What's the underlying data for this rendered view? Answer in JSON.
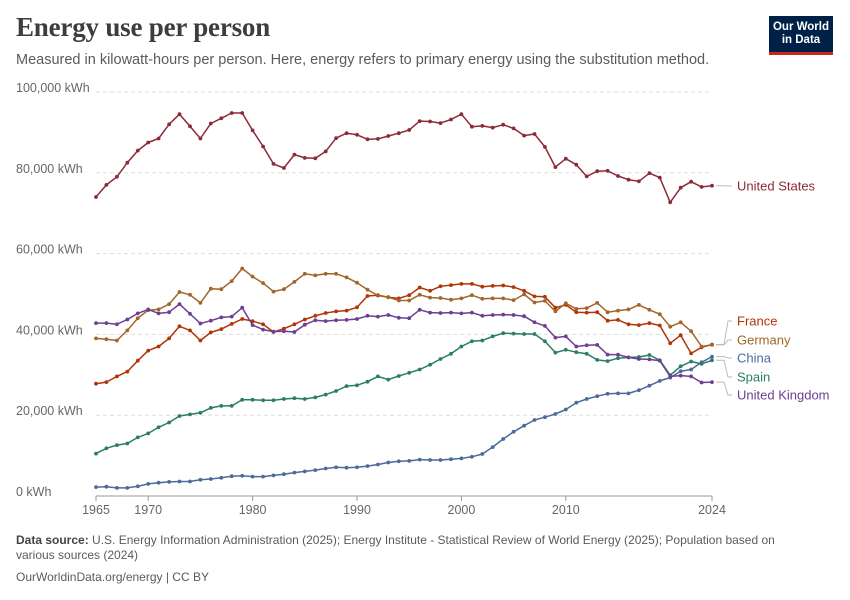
{
  "header": {
    "title": "Energy use per person",
    "subtitle": "Measured in kilowatt-hours per person. Here, energy refers to primary energy using the substitution method.",
    "logo_line1": "Our World",
    "logo_line2": "in Data"
  },
  "footer": {
    "source_label": "Data source:",
    "source_text": "U.S. Energy Information Administration (2025); Energy Institute - Statistical Review of World Energy (2025); Population based on various sources (2024)",
    "credit": "OurWorldinData.org/energy | CC BY"
  },
  "colors": {
    "United States": "#8c2a3a",
    "France": "#b13507",
    "Germany": "#a2652a",
    "China": "#4c6a9c",
    "Spain": "#2a7e64",
    "United Kingdom": "#6d3e91"
  },
  "chart_data": {
    "type": "line",
    "title": "Energy use per person",
    "ylabel": "",
    "ylim": [
      0,
      100000
    ],
    "xlim": [
      1965,
      2024
    ],
    "grid": true,
    "legend": "right-edge labels",
    "x_ticks": [
      1965,
      1970,
      1980,
      1990,
      2000,
      2010,
      2024
    ],
    "y_ticks": [
      "0 kWh",
      "20,000 kWh",
      "40,000 kWh",
      "60,000 kWh",
      "80,000 kWh",
      "100,000 kWh"
    ],
    "y_tick_values": [
      0,
      20000,
      40000,
      60000,
      80000,
      100000
    ],
    "x": [
      1965,
      1966,
      1967,
      1968,
      1969,
      1970,
      1971,
      1972,
      1973,
      1974,
      1975,
      1976,
      1977,
      1978,
      1979,
      1980,
      1981,
      1982,
      1983,
      1984,
      1985,
      1986,
      1987,
      1988,
      1989,
      1990,
      1991,
      1992,
      1993,
      1994,
      1995,
      1996,
      1997,
      1998,
      1999,
      2000,
      2001,
      2002,
      2003,
      2004,
      2005,
      2006,
      2007,
      2008,
      2009,
      2010,
      2011,
      2012,
      2013,
      2014,
      2015,
      2016,
      2017,
      2018,
      2019,
      2020,
      2021,
      2022,
      2023,
      2024
    ],
    "series": [
      {
        "name": "United States",
        "values": [
          74000,
          77000,
          79000,
          82500,
          85500,
          87500,
          88500,
          92000,
          94500,
          91500,
          88500,
          92200,
          93500,
          94800,
          94800,
          90500,
          86500,
          82200,
          81200,
          84500,
          83700,
          83600,
          85300,
          88600,
          89800,
          89400,
          88300,
          88400,
          89100,
          89800,
          90600,
          92800,
          92700,
          92300,
          93200,
          94500,
          91400,
          91600,
          91200,
          91900,
          91000,
          89200,
          89600,
          86400,
          81400,
          83500,
          82000,
          79100,
          80400,
          80500,
          79200,
          78300,
          77900,
          79900,
          78800,
          72700,
          76300,
          77800,
          76500,
          76800
        ]
      },
      {
        "name": "France",
        "values": [
          27800,
          28200,
          29600,
          30800,
          33500,
          36000,
          37000,
          39000,
          42000,
          41000,
          38500,
          40500,
          41300,
          42600,
          43800,
          43300,
          42500,
          40600,
          41400,
          42500,
          43700,
          44600,
          45300,
          45700,
          45900,
          46700,
          49500,
          49700,
          49200,
          48900,
          49700,
          51600,
          50800,
          51900,
          52200,
          52500,
          52500,
          51800,
          52000,
          52100,
          51700,
          50800,
          49400,
          49300,
          46600,
          47300,
          45500,
          45400,
          45500,
          43400,
          43600,
          42500,
          42300,
          42800,
          42200,
          37800,
          39800,
          35300,
          36800,
          37500
        ]
      },
      {
        "name": "Germany",
        "values": [
          39000,
          38800,
          38500,
          41000,
          44000,
          46000,
          46200,
          47500,
          50500,
          49800,
          47800,
          51300,
          51200,
          53200,
          56300,
          54300,
          52700,
          50600,
          51200,
          53000,
          55000,
          54600,
          55000,
          55000,
          54100,
          52800,
          51100,
          49600,
          49200,
          48400,
          48400,
          49800,
          49100,
          49000,
          48600,
          48900,
          49700,
          48800,
          48900,
          48900,
          48500,
          49900,
          47900,
          48300,
          45700,
          47700,
          46300,
          46500,
          47800,
          45500,
          45900,
          46200,
          47300,
          46100,
          45000,
          41900,
          43000,
          40800,
          37000,
          37400
        ]
      },
      {
        "name": "China",
        "values": [
          2200,
          2300,
          2000,
          2000,
          2400,
          3000,
          3300,
          3500,
          3600,
          3600,
          4000,
          4200,
          4500,
          4900,
          5000,
          4800,
          4800,
          5100,
          5400,
          5800,
          6100,
          6400,
          6800,
          7100,
          7000,
          7100,
          7400,
          7800,
          8300,
          8600,
          8700,
          9000,
          8900,
          8900,
          9100,
          9300,
          9700,
          10400,
          12100,
          14100,
          15900,
          17400,
          18800,
          19500,
          20300,
          21400,
          23100,
          24000,
          24700,
          25300,
          25400,
          25400,
          26200,
          27300,
          28500,
          29300,
          30900,
          31300,
          33100,
          34500
        ]
      },
      {
        "name": "Spain",
        "values": [
          10500,
          11800,
          12600,
          13000,
          14500,
          15500,
          17000,
          18200,
          19800,
          20200,
          20600,
          21800,
          22300,
          22300,
          23800,
          23800,
          23700,
          23700,
          24000,
          24200,
          24000,
          24400,
          25100,
          26000,
          27200,
          27400,
          28300,
          29600,
          28800,
          29700,
          30500,
          31300,
          32500,
          33900,
          35200,
          37000,
          38300,
          38500,
          39500,
          40300,
          40200,
          40100,
          40100,
          38300,
          35500,
          36200,
          35600,
          35200,
          33700,
          33400,
          34100,
          34300,
          34400,
          34900,
          33600,
          29900,
          32100,
          33300,
          32700,
          33600
        ]
      },
      {
        "name": "United Kingdom",
        "values": [
          42800,
          42800,
          42500,
          43700,
          45200,
          46200,
          45200,
          45500,
          47500,
          45100,
          42700,
          43400,
          44200,
          44400,
          46600,
          42300,
          41200,
          40700,
          40800,
          40600,
          42400,
          43500,
          43300,
          43500,
          43600,
          43800,
          44600,
          44400,
          44800,
          44100,
          44000,
          46100,
          45400,
          45300,
          45400,
          45200,
          45400,
          44600,
          44800,
          44900,
          44800,
          44500,
          43000,
          42100,
          39200,
          39500,
          37000,
          37300,
          37400,
          35000,
          35000,
          34300,
          33900,
          33800,
          33500,
          29600,
          29800,
          29600,
          28100,
          28200
        ]
      }
    ]
  }
}
